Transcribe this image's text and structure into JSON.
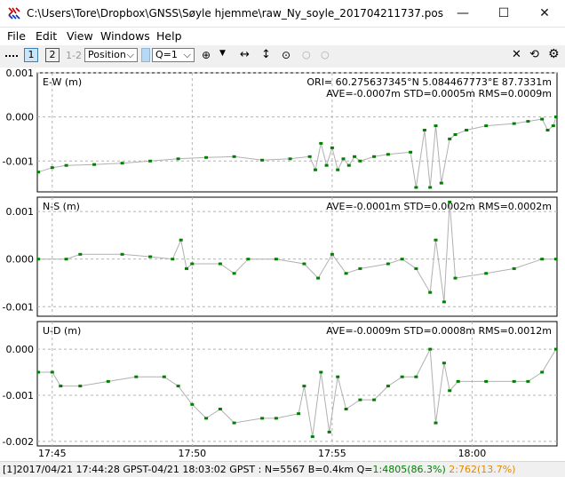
{
  "window": {
    "title": "C:\\Users\\Tore\\Dropbox\\GNSS\\Søyle hjemme\\raw_Ny_soyle_201704211737.pos",
    "minimize": "—",
    "maximize": "☐",
    "close": "✕"
  },
  "menu": [
    "File",
    "Edit",
    "View",
    "Windows",
    "Help"
  ],
  "toolbar": {
    "btn1": "1",
    "btn2": "2",
    "btn12": "1-2",
    "plot_type": "Position",
    "quality": "Q=1"
  },
  "panels": [
    {
      "label": "E-W (m)",
      "ori": "ORI= 60.275637345°N    5.084467773°E 87.7331m",
      "stats": "AVE=-0.0007m STD=0.0005m RMS=0.0009m",
      "ylim": [
        -0.0017,
        0.001
      ],
      "yticks": [
        0.001,
        0.0,
        -0.001
      ],
      "ytick_labels": [
        "0.001",
        "0.000",
        "-0.001"
      ]
    },
    {
      "label": "N-S (m)",
      "stats": "AVE=-0.0001m STD=0.0002m RMS=0.0002m",
      "ylim": [
        -0.0012,
        0.0013
      ],
      "yticks": [
        0.001,
        0.0,
        -0.001
      ],
      "ytick_labels": [
        "0.001",
        "0.000",
        "-0.001"
      ]
    },
    {
      "label": "U-D (m)",
      "stats": "AVE=-0.0009m STD=0.0008m RMS=0.0012m",
      "ylim": [
        -0.0021,
        0.0006
      ],
      "yticks": [
        0.0,
        -0.001,
        -0.002
      ],
      "ytick_labels": [
        "0.000",
        "-0.001",
        "-0.002"
      ]
    }
  ],
  "chart_data": {
    "type": "scatter",
    "x_range": [
      "17:44:28",
      "18:03:02"
    ],
    "x_ticks": [
      "17:45",
      "17:50",
      "17:55",
      "18:00"
    ],
    "series_color": "#008000",
    "connect_color": "#b0b0b0",
    "series": [
      {
        "axis": "E-W",
        "points": [
          [
            44.5,
            -0.00125
          ],
          [
            45.0,
            -0.00115
          ],
          [
            45.5,
            -0.0011
          ],
          [
            46.5,
            -0.00108
          ],
          [
            47.5,
            -0.00105
          ],
          [
            48.5,
            -0.001
          ],
          [
            49.5,
            -0.00095
          ],
          [
            50.5,
            -0.00092
          ],
          [
            51.5,
            -0.0009
          ],
          [
            52.5,
            -0.00098
          ],
          [
            53.5,
            -0.00095
          ],
          [
            54.2,
            -0.0009
          ],
          [
            54.4,
            -0.0012
          ],
          [
            54.6,
            -0.0006
          ],
          [
            54.8,
            -0.0011
          ],
          [
            55.0,
            -0.0007
          ],
          [
            55.2,
            -0.0012
          ],
          [
            55.4,
            -0.00095
          ],
          [
            55.6,
            -0.0011
          ],
          [
            55.8,
            -0.0009
          ],
          [
            56.0,
            -0.001
          ],
          [
            56.5,
            -0.0009
          ],
          [
            57.0,
            -0.00085
          ],
          [
            57.8,
            -0.0008
          ],
          [
            58.0,
            -0.0016
          ],
          [
            58.3,
            -0.0003
          ],
          [
            58.5,
            -0.0016
          ],
          [
            58.7,
            -0.0002
          ],
          [
            58.9,
            -0.0015
          ],
          [
            59.2,
            -0.0005
          ],
          [
            59.4,
            -0.0004
          ],
          [
            59.8,
            -0.0003
          ],
          [
            60.5,
            -0.0002
          ],
          [
            61.5,
            -0.00015
          ],
          [
            62.0,
            -0.0001
          ],
          [
            62.5,
            -5e-05
          ],
          [
            62.7,
            -0.0003
          ],
          [
            62.9,
            -0.0002
          ],
          [
            63.0,
            0.0
          ]
        ]
      },
      {
        "axis": "N-S",
        "points": [
          [
            44.5,
            0.0
          ],
          [
            45.5,
            0.0
          ],
          [
            46.0,
            0.0001
          ],
          [
            47.5,
            0.0001
          ],
          [
            48.5,
            5e-05
          ],
          [
            49.3,
            0.0
          ],
          [
            49.6,
            0.0004
          ],
          [
            49.8,
            -0.0002
          ],
          [
            50.0,
            -0.0001
          ],
          [
            51.0,
            -0.0001
          ],
          [
            51.5,
            -0.0003
          ],
          [
            52.0,
            0.0
          ],
          [
            53.0,
            0.0
          ],
          [
            54.0,
            -0.0001
          ],
          [
            54.5,
            -0.0004
          ],
          [
            55.0,
            0.0001
          ],
          [
            55.5,
            -0.0003
          ],
          [
            56.0,
            -0.0002
          ],
          [
            57.0,
            -0.0001
          ],
          [
            57.5,
            0.0
          ],
          [
            58.0,
            -0.0002
          ],
          [
            58.5,
            -0.0007
          ],
          [
            58.7,
            0.0004
          ],
          [
            59.0,
            -0.0009
          ],
          [
            59.2,
            0.0012
          ],
          [
            59.4,
            -0.0004
          ],
          [
            60.5,
            -0.0003
          ],
          [
            61.5,
            -0.0002
          ],
          [
            62.5,
            0.0
          ],
          [
            63.0,
            0.0
          ]
        ]
      },
      {
        "axis": "U-D",
        "points": [
          [
            44.5,
            -0.0005
          ],
          [
            45.0,
            -0.0005
          ],
          [
            45.3,
            -0.0008
          ],
          [
            46.0,
            -0.0008
          ],
          [
            47.0,
            -0.0007
          ],
          [
            48.0,
            -0.0006
          ],
          [
            49.0,
            -0.0006
          ],
          [
            49.5,
            -0.0008
          ],
          [
            50.0,
            -0.0012
          ],
          [
            50.5,
            -0.0015
          ],
          [
            51.0,
            -0.0013
          ],
          [
            51.5,
            -0.0016
          ],
          [
            52.5,
            -0.0015
          ],
          [
            53.0,
            -0.0015
          ],
          [
            53.8,
            -0.0014
          ],
          [
            54.0,
            -0.0008
          ],
          [
            54.3,
            -0.0019
          ],
          [
            54.6,
            -0.0005
          ],
          [
            54.9,
            -0.0018
          ],
          [
            55.2,
            -0.0006
          ],
          [
            55.5,
            -0.0013
          ],
          [
            56.0,
            -0.0011
          ],
          [
            56.5,
            -0.0011
          ],
          [
            57.0,
            -0.0008
          ],
          [
            57.5,
            -0.0006
          ],
          [
            58.0,
            -0.0006
          ],
          [
            58.5,
            0.0
          ],
          [
            58.7,
            -0.0016
          ],
          [
            59.0,
            -0.0003
          ],
          [
            59.2,
            -0.0009
          ],
          [
            59.5,
            -0.0007
          ],
          [
            60.5,
            -0.0007
          ],
          [
            61.5,
            -0.0007
          ],
          [
            62.0,
            -0.0007
          ],
          [
            62.5,
            -0.0005
          ],
          [
            63.0,
            0.0
          ]
        ]
      }
    ]
  },
  "status": {
    "main": "[1]2017/04/21 17:44:28 GPST-04/21 18:03:02 GPST : N=5567 B=0.4km Q=",
    "q1": "1:4805(86.3%)",
    "q2": "2:762(13.7%)"
  }
}
